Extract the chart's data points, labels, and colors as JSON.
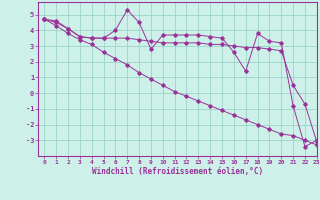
{
  "xlabel": "Windchill (Refroidissement éolien,°C)",
  "background_color": "#cdf0e8",
  "grid_color": "#9dd4c8",
  "line_color": "#993399",
  "spine_color": "#993399",
  "xlim": [
    -0.5,
    23
  ],
  "ylim": [
    -4,
    5.8
  ],
  "xticks": [
    0,
    1,
    2,
    3,
    4,
    5,
    6,
    7,
    8,
    9,
    10,
    11,
    12,
    13,
    14,
    15,
    16,
    17,
    18,
    19,
    20,
    21,
    22,
    23
  ],
  "yticks": [
    -3,
    -2,
    -1,
    0,
    1,
    2,
    3,
    4,
    5
  ],
  "series": [
    [
      4.7,
      4.6,
      4.1,
      3.6,
      3.5,
      3.5,
      4.0,
      5.3,
      4.5,
      2.8,
      3.7,
      3.7,
      3.7,
      3.7,
      3.6,
      3.5,
      2.6,
      1.4,
      3.8,
      3.3,
      3.2,
      -0.8,
      -3.4,
      -3.0
    ],
    [
      4.7,
      4.5,
      4.1,
      3.6,
      3.5,
      3.5,
      3.5,
      3.5,
      3.4,
      3.3,
      3.2,
      3.2,
      3.2,
      3.2,
      3.1,
      3.1,
      3.0,
      2.9,
      2.9,
      2.8,
      2.7,
      0.5,
      -0.7,
      -3.1
    ],
    [
      4.7,
      4.3,
      3.8,
      3.4,
      3.1,
      2.6,
      2.2,
      1.8,
      1.3,
      0.9,
      0.5,
      0.1,
      -0.2,
      -0.5,
      -0.8,
      -1.1,
      -1.4,
      -1.7,
      -2.0,
      -2.3,
      -2.6,
      -2.7,
      -3.0,
      -3.3
    ]
  ]
}
